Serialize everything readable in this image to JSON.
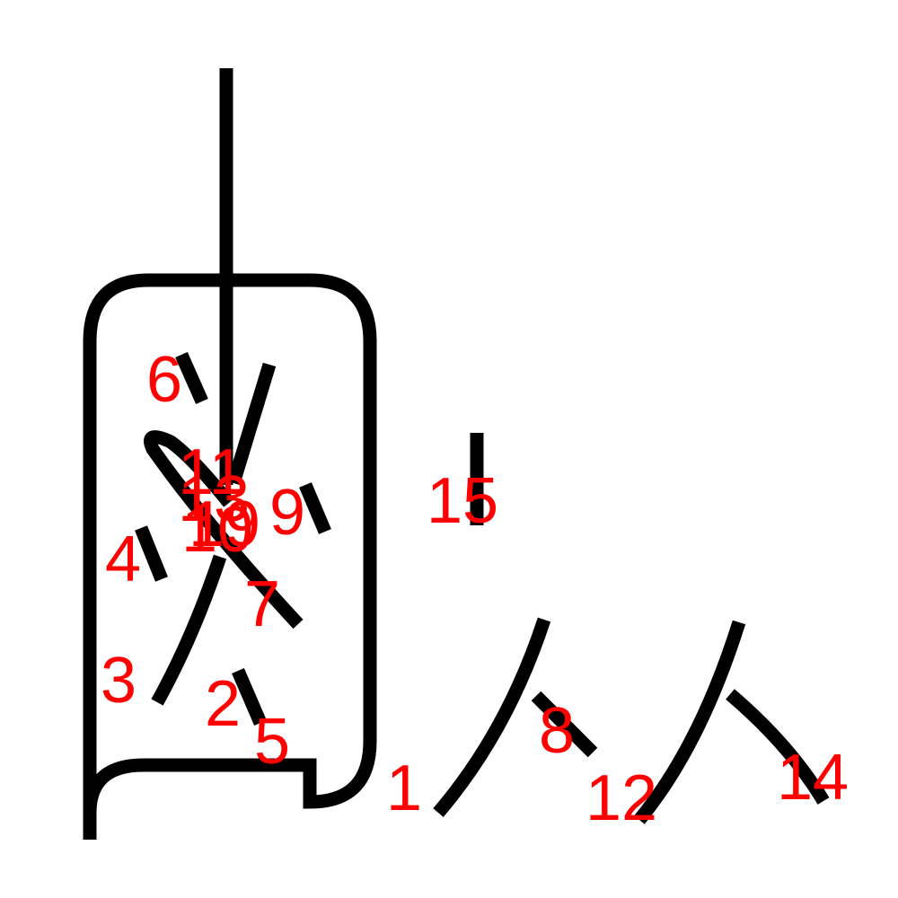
{
  "colors": {
    "stroke": "#000000",
    "label": "#ff0000",
    "background": "#ffffff"
  },
  "labels": [
    "6",
    "11",
    "13",
    "9",
    "10",
    "19",
    "4",
    "15",
    "7",
    "3",
    "2",
    "8",
    "5",
    "1",
    "12",
    "14"
  ]
}
